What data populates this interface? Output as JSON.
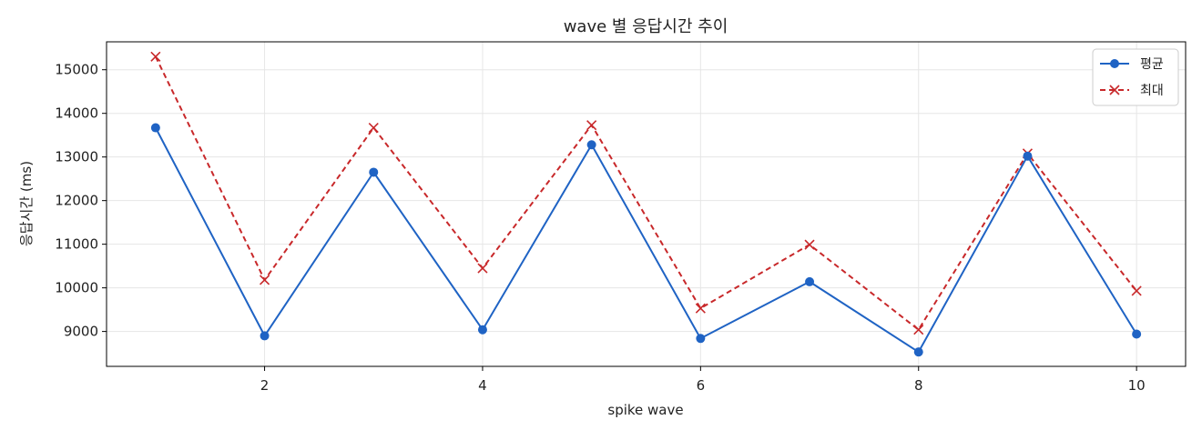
{
  "chart_data": {
    "type": "line",
    "title": "wave 별 응답시간 추이",
    "xlabel": "spike wave",
    "ylabel": "응답시간 (ms)",
    "x": [
      1,
      2,
      3,
      4,
      5,
      6,
      7,
      8,
      9,
      10
    ],
    "x_ticks": [
      2,
      4,
      6,
      8,
      10
    ],
    "y_ticks": [
      9000,
      10000,
      11000,
      12000,
      13000,
      14000,
      15000
    ],
    "xlim": [
      0.55,
      10.45
    ],
    "ylim": [
      8200,
      15640
    ],
    "grid": true,
    "legend_position": "top-right",
    "series": [
      {
        "name": "평균",
        "values": [
          13670,
          8900,
          12650,
          9040,
          13280,
          8840,
          10140,
          8530,
          13020,
          8940
        ],
        "color": "#1f63c4",
        "line_style": "solid",
        "marker": "circle"
      },
      {
        "name": "최대",
        "values": [
          15300,
          10180,
          13670,
          10450,
          13730,
          9530,
          10990,
          9040,
          13080,
          9930
        ],
        "color": "#c8282a",
        "line_style": "dashed",
        "marker": "x"
      }
    ]
  }
}
